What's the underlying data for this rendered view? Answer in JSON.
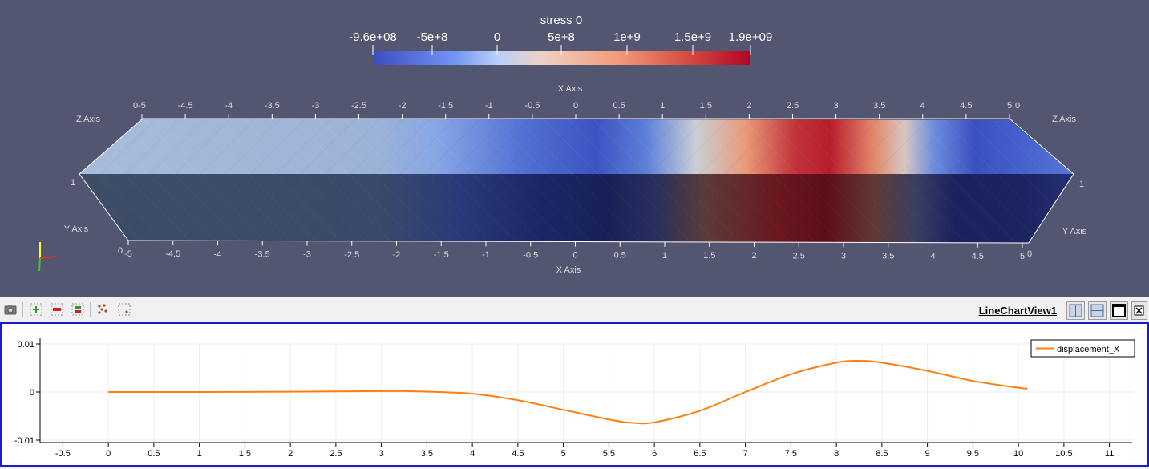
{
  "render_view": {
    "scalar_bar": {
      "title": "stress 0",
      "labels": [
        "-9.6e+08",
        "-5e+8",
        "0",
        "5e+8",
        "1e+9",
        "1.5e+9",
        "1.9e+09"
      ]
    },
    "axes": {
      "x_axis_title": "X Axis",
      "y_axis_title": "Y Axis",
      "z_axis_title": "Z Axis",
      "x_ticks": [
        "-5",
        "-4.5",
        "-4",
        "-3.5",
        "-3",
        "-2.5",
        "-2",
        "-1.5",
        "-1",
        "-0.5",
        "0",
        "0.5",
        "1",
        "1.5",
        "2",
        "2.5",
        "3",
        "3.5",
        "4",
        "4.5",
        "5"
      ],
      "corner_zero": "0",
      "corner_one": "1"
    }
  },
  "toolbar": {
    "view_title": "LineChartView1",
    "buttons": [
      "camera-icon",
      "zoom-in-icon",
      "zoom-out-icon",
      "zoom-to-data-icon",
      "scatter-select-icon",
      "rubber-band-select-icon"
    ],
    "window_buttons": [
      "split-horizontal-icon",
      "split-vertical-icon",
      "maximize-icon",
      "close-icon"
    ]
  },
  "chart_data": {
    "type": "line",
    "title": "",
    "xlabel": "",
    "ylabel": "",
    "xlim": [
      -0.75,
      11.25
    ],
    "ylim": [
      -0.0105,
      0.0105
    ],
    "xticks": [
      "-0.5",
      "0",
      "0.5",
      "1",
      "1.5",
      "2",
      "2.5",
      "3",
      "3.5",
      "4",
      "4.5",
      "5",
      "5.5",
      "6",
      "6.5",
      "7",
      "7.5",
      "8",
      "8.5",
      "9",
      "9.5",
      "10",
      "10.5",
      "11"
    ],
    "yticks": [
      "0.01",
      "0",
      "-0.01"
    ],
    "ytick_values": [
      0.01,
      0,
      -0.01
    ],
    "grid": true,
    "legend_position": "top-right",
    "series": [
      {
        "name": "displacement_X",
        "color": "#ff7f0e",
        "x": [
          0,
          0.5,
          1,
          1.5,
          2,
          2.5,
          3,
          3.25,
          3.5,
          4,
          4.5,
          5,
          5.5,
          5.75,
          6,
          6.5,
          7,
          7.5,
          8,
          8.25,
          8.5,
          9,
          9.5,
          10,
          10.1
        ],
        "y": [
          0,
          0,
          0,
          3e-05,
          6e-05,
          0.00012,
          0.00018,
          0.00018,
          8e-05,
          -0.00035,
          -0.0017,
          -0.0037,
          -0.0057,
          -0.0064,
          -0.0063,
          -0.0039,
          0,
          0.0037,
          0.0061,
          0.0065,
          0.0061,
          0.0044,
          0.0023,
          0.0009,
          0.0007
        ]
      }
    ]
  }
}
